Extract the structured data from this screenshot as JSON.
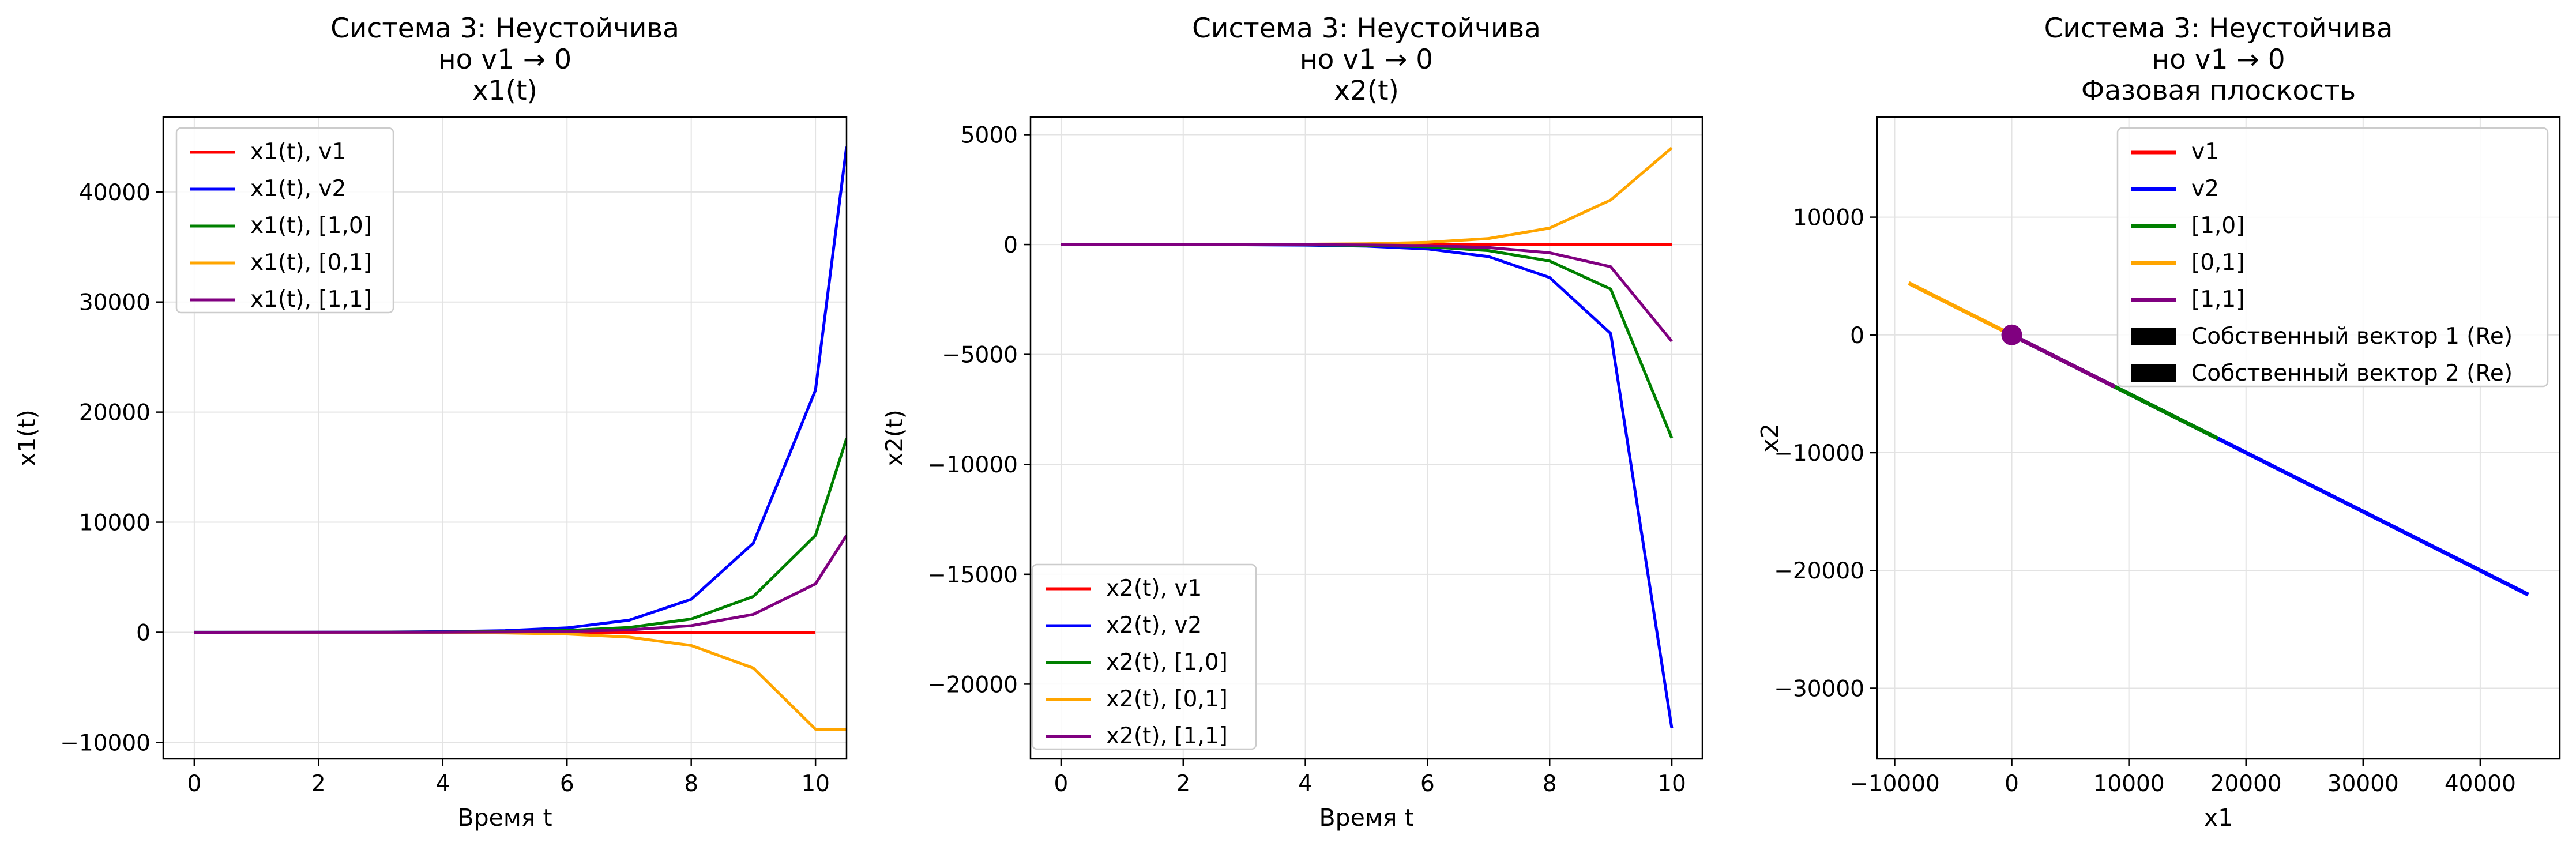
{
  "chart_data": [
    {
      "type": "line",
      "title": [
        "Система 3: Неустойчива",
        "но v1 → 0",
        "x1(t)"
      ],
      "xlabel": "Время t",
      "ylabel": "x1(t)",
      "xlim": [
        -0.5,
        10.5
      ],
      "ylim": [
        -11500,
        46800
      ],
      "xticks": [
        0,
        2,
        4,
        6,
        8,
        10
      ],
      "xtick_labels": [
        "0",
        "2",
        "4",
        "6",
        "8",
        "10"
      ],
      "yticks": [
        -10000,
        0,
        10000,
        20000,
        30000,
        40000
      ],
      "ytick_labels": [
        "−10000",
        "0",
        "10000",
        "20000",
        "30000",
        "40000"
      ],
      "grid": true,
      "legend_position": "upper-left",
      "series": [
        {
          "name": "x1(t), v1",
          "color": "#ff0000",
          "x": [
            0,
            1,
            2,
            3,
            4,
            5,
            6,
            7,
            8,
            9,
            10
          ],
          "y": [
            0,
            0,
            0,
            0,
            0,
            0,
            0,
            0,
            0,
            0,
            0
          ]
        },
        {
          "name": "x1(t), v2",
          "color": "#0000ff",
          "x": [
            0,
            1,
            2,
            3,
            4,
            5,
            6,
            7,
            8,
            9,
            10,
            10.5
          ],
          "y": [
            1,
            3,
            7,
            20,
            55,
            150,
            400,
            1100,
            3000,
            8100,
            22000,
            44100
          ]
        },
        {
          "name": "x1(t), [1,0]",
          "color": "#008000",
          "x": [
            0,
            1,
            2,
            3,
            4,
            5,
            6,
            7,
            8,
            9,
            10,
            10.5
          ],
          "y": [
            0.4,
            1,
            3,
            8,
            22,
            60,
            162,
            440,
            1200,
            3250,
            8800,
            17600
          ]
        },
        {
          "name": "x1(t), [0,1]",
          "color": "#ffa500",
          "x": [
            0,
            1,
            2,
            3,
            4,
            5,
            6,
            7,
            8,
            9,
            10,
            10.5
          ],
          "y": [
            0,
            -1,
            -3,
            -8,
            -22,
            -60,
            -162,
            -440,
            -1200,
            -3250,
            -8800,
            -8800
          ]
        },
        {
          "name": "x1(t), [1,1]",
          "color": "#800080",
          "x": [
            0,
            1,
            2,
            3,
            4,
            5,
            6,
            7,
            8,
            9,
            10,
            10.5
          ],
          "y": [
            0.2,
            0.5,
            1.5,
            4,
            11,
            30,
            81,
            220,
            600,
            1625,
            4400,
            8800
          ]
        }
      ]
    },
    {
      "type": "line",
      "title": [
        "Система 3: Неустойчива",
        "но v1 → 0",
        "x2(t)"
      ],
      "xlabel": "Время t",
      "ylabel": "x2(t)",
      "xlim": [
        -0.5,
        10.5
      ],
      "ylim": [
        -23400,
        5800
      ],
      "xticks": [
        0,
        2,
        4,
        6,
        8,
        10
      ],
      "xtick_labels": [
        "0",
        "2",
        "4",
        "6",
        "8",
        "10"
      ],
      "yticks": [
        -20000,
        -15000,
        -10000,
        -5000,
        0,
        5000
      ],
      "ytick_labels": [
        "−20000",
        "−15000",
        "−10000",
        "−5000",
        "0",
        "5000"
      ],
      "grid": true,
      "legend_position": "lower-left",
      "series": [
        {
          "name": "x2(t), v1",
          "color": "#ff0000",
          "x": [
            0,
            1,
            2,
            3,
            4,
            5,
            6,
            7,
            8,
            9,
            10
          ],
          "y": [
            0,
            0,
            0,
            0,
            0,
            0,
            0,
            0,
            0,
            0,
            0
          ]
        },
        {
          "name": "x2(t), v2",
          "color": "#0000ff",
          "x": [
            0,
            1,
            2,
            3,
            4,
            5,
            6,
            7,
            8,
            9,
            10
          ],
          "y": [
            0,
            -1,
            -4,
            -10,
            -27,
            -75,
            -200,
            -550,
            -1500,
            -4050,
            -22000
          ]
        },
        {
          "name": "x2(t), [1,0]",
          "color": "#008000",
          "x": [
            0,
            1,
            2,
            3,
            4,
            5,
            6,
            7,
            8,
            9,
            10
          ],
          "y": [
            0,
            -0.5,
            -2,
            -5,
            -13,
            -37,
            -100,
            -275,
            -750,
            -2025,
            -8800
          ]
        },
        {
          "name": "x2(t), [0,1]",
          "color": "#ffa500",
          "x": [
            0,
            1,
            2,
            3,
            4,
            5,
            6,
            7,
            8,
            9,
            10
          ],
          "y": [
            0,
            0.5,
            2,
            5,
            13,
            37,
            100,
            275,
            750,
            2025,
            4400
          ]
        },
        {
          "name": "x2(t), [1,1]",
          "color": "#800080",
          "x": [
            0,
            1,
            2,
            3,
            4,
            5,
            6,
            7,
            8,
            9,
            10
          ],
          "y": [
            0,
            -0.2,
            -1,
            -2.5,
            -7,
            -18,
            -50,
            -137,
            -375,
            -1012,
            -4400
          ]
        }
      ]
    },
    {
      "type": "line",
      "title": [
        "Система 3: Неустойчива",
        "но v1 → 0",
        "Фазовая плоскость"
      ],
      "xlabel": "x1",
      "ylabel": "x2",
      "xlim": [
        -11500,
        46800
      ],
      "ylim": [
        -36000,
        18500
      ],
      "xticks": [
        -10000,
        0,
        10000,
        20000,
        30000,
        40000
      ],
      "xtick_labels": [
        "−10000",
        "0",
        "10000",
        "20000",
        "30000",
        "40000"
      ],
      "yticks": [
        -30000,
        -20000,
        -10000,
        0,
        10000
      ],
      "ytick_labels": [
        "−30000",
        "−20000",
        "−10000",
        "0",
        "10000"
      ],
      "grid": true,
      "legend_position": "upper-center",
      "series": [
        {
          "name": "v1",
          "color": "#ff0000",
          "x": [
            0,
            0
          ],
          "y": [
            0,
            0
          ]
        },
        {
          "name": "v2",
          "color": "#0000ff",
          "x": [
            0,
            44100
          ],
          "y": [
            0,
            -22050
          ]
        },
        {
          "name": "[1,0]",
          "color": "#008000",
          "x": [
            0,
            17600
          ],
          "y": [
            0,
            -8800
          ]
        },
        {
          "name": "[0,1]",
          "color": "#ffa500",
          "x": [
            0,
            -8800
          ],
          "y": [
            0,
            4400
          ]
        },
        {
          "name": "[1,1]",
          "color": "#800080",
          "x": [
            0,
            8800
          ],
          "y": [
            0,
            -4400
          ]
        }
      ],
      "extra_legend": [
        {
          "name": "Собственный вектор 1 (Re)",
          "color": "#000000"
        },
        {
          "name": "Собственный вектор 2 (Re)",
          "color": "#000000"
        }
      ],
      "marker": {
        "x": 0,
        "y": 0,
        "color": "#800080"
      }
    }
  ]
}
